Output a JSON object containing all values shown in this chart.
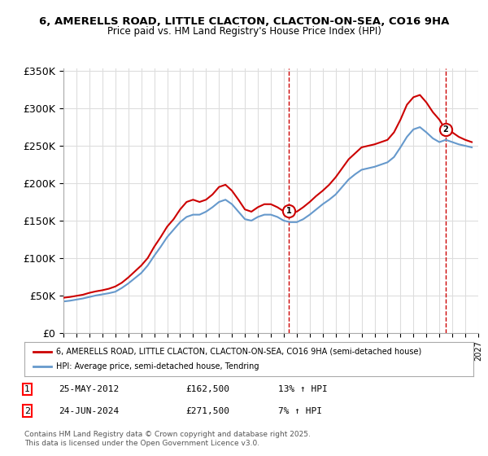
{
  "title_line1": "6, AMERELLS ROAD, LITTLE CLACTON, CLACTON-ON-SEA, CO16 9HA",
  "title_line2": "Price paid vs. HM Land Registry's House Price Index (HPI)",
  "ylabel": "",
  "background_color": "#ffffff",
  "grid_color": "#dddddd",
  "red_color": "#cc0000",
  "blue_color": "#6699cc",
  "marker1_x": 2012.39,
  "marker1_y": 162500,
  "marker1_label": "1",
  "marker2_x": 2024.48,
  "marker2_y": 271500,
  "marker2_label": "2",
  "legend_line1": "6, AMERELLS ROAD, LITTLE CLACTON, CLACTON-ON-SEA, CO16 9HA (semi-detached house)",
  "legend_line2": "HPI: Average price, semi-detached house, Tendring",
  "table_row1": [
    "1",
    "25-MAY-2012",
    "£162,500",
    "13% ↑ HPI"
  ],
  "table_row2": [
    "2",
    "24-JUN-2024",
    "£271,500",
    "7% ↑ HPI"
  ],
  "footnote": "Contains HM Land Registry data © Crown copyright and database right 2025.\nThis data is licensed under the Open Government Licence v3.0.",
  "xmin": 1995,
  "xmax": 2027,
  "ymin": 0,
  "ymax": 350000,
  "yticks": [
    0,
    50000,
    100000,
    150000,
    200000,
    250000,
    300000,
    350000
  ],
  "ytick_labels": [
    "£0",
    "£50K",
    "£100K",
    "£150K",
    "£200K",
    "£250K",
    "£300K",
    "£350K"
  ]
}
